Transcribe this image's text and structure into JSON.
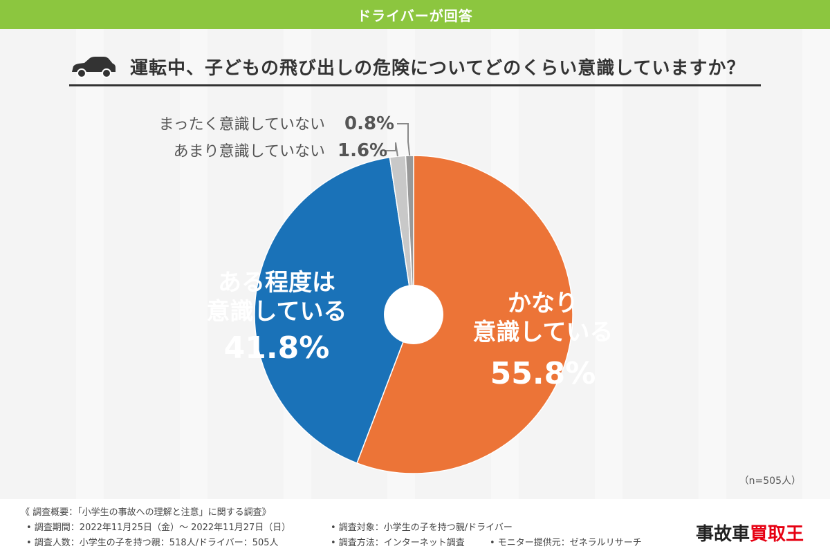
{
  "banner": {
    "title": "ドライバーが回答"
  },
  "question": {
    "text": "運転中、子どもの飛び出しの危険についてどのくらい意識していますか？",
    "icon": "car-icon"
  },
  "chart_data": {
    "type": "pie",
    "donut": true,
    "series": [
      {
        "label_lines": [
          "かなり",
          "意識している"
        ],
        "value_text": "55.8%",
        "value": 55.8,
        "color": "#ec7437"
      },
      {
        "label_lines": [
          "ある程度は",
          "意識している"
        ],
        "value_text": "41.8%",
        "value": 41.8,
        "color": "#1a72b8"
      },
      {
        "label_lines": [
          "あまり意識していない"
        ],
        "value_text": "1.6%",
        "value": 1.6,
        "color": "#c8c8c8"
      },
      {
        "label_lines": [
          "まったく意識していない"
        ],
        "value_text": "0.8%",
        "value": 0.8,
        "color": "#999999"
      }
    ],
    "note": "（n=505人）"
  },
  "footer": {
    "summary": "《 調査概要：「小学生の事故への理解と注意」に関する調査》",
    "period": "• 調査期間：2022年11月25日（金）～ 2022年11月27日（日）",
    "target": "• 調査対象：小学生の子を持つ親/ドライバー",
    "count": "• 調査人数：小学生の子を持つ親：518人/ドライバー：505人",
    "method": "• 調査方法：インターネット調査",
    "monitor": "• モニター提供元：ゼネラルリサーチ"
  },
  "logo": {
    "part1": "事故車",
    "part2": "買取王"
  }
}
